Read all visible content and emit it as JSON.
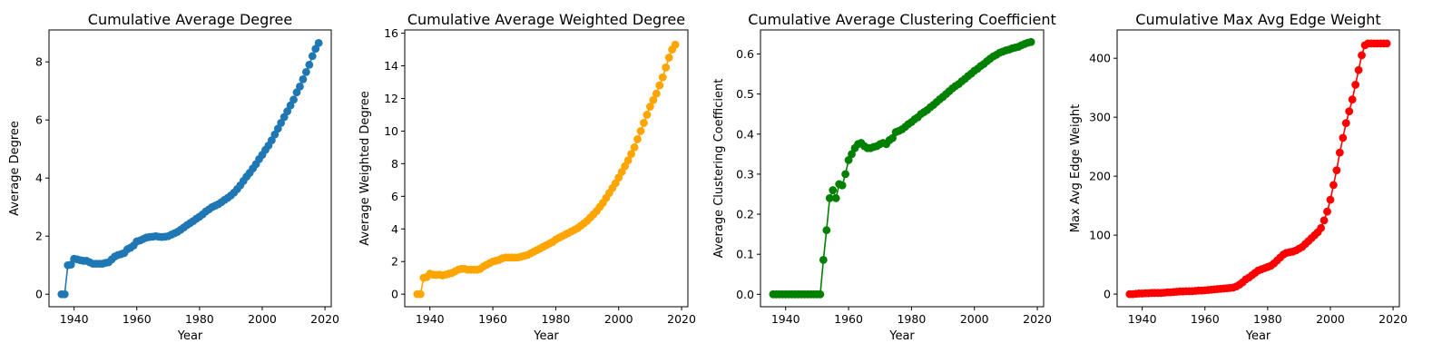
{
  "chart_data": [
    {
      "type": "line",
      "title": "Cumulative Average Degree",
      "xlabel": "Year",
      "ylabel": "Average Degree",
      "color": "#1f77b4",
      "xlim": [
        1932,
        2022
      ],
      "ylim": [
        -0.43,
        9.1
      ],
      "xticks": [
        1940,
        1960,
        1980,
        2000,
        2020
      ],
      "yticks": [
        0,
        2,
        4,
        6,
        8
      ],
      "ytick_labels": [
        "0",
        "2",
        "4",
        "6",
        "8"
      ],
      "grid": false,
      "markers": true,
      "x": [
        1936,
        1937,
        1938,
        1939,
        1940,
        1941,
        1942,
        1943,
        1944,
        1945,
        1946,
        1947,
        1948,
        1949,
        1950,
        1951,
        1952,
        1953,
        1954,
        1955,
        1956,
        1957,
        1958,
        1959,
        1960,
        1961,
        1962,
        1963,
        1964,
        1965,
        1966,
        1967,
        1968,
        1969,
        1970,
        1971,
        1972,
        1973,
        1974,
        1975,
        1976,
        1977,
        1978,
        1979,
        1980,
        1981,
        1982,
        1983,
        1984,
        1985,
        1986,
        1987,
        1988,
        1989,
        1990,
        1991,
        1992,
        1993,
        1994,
        1995,
        1996,
        1997,
        1998,
        1999,
        2000,
        2001,
        2002,
        2003,
        2004,
        2005,
        2006,
        2007,
        2008,
        2009,
        2010,
        2011,
        2012,
        2013,
        2014,
        2015,
        2016,
        2017,
        2018
      ],
      "y": [
        0,
        0,
        1.0,
        1.02,
        1.22,
        1.2,
        1.17,
        1.15,
        1.15,
        1.1,
        1.05,
        1.05,
        1.05,
        1.05,
        1.08,
        1.1,
        1.2,
        1.3,
        1.35,
        1.38,
        1.42,
        1.55,
        1.6,
        1.68,
        1.82,
        1.85,
        1.9,
        1.95,
        1.97,
        1.98,
        2.0,
        1.98,
        1.97,
        1.98,
        2.0,
        2.05,
        2.1,
        2.15,
        2.22,
        2.3,
        2.38,
        2.45,
        2.52,
        2.6,
        2.67,
        2.75,
        2.85,
        2.92,
        3.0,
        3.05,
        3.1,
        3.17,
        3.25,
        3.32,
        3.4,
        3.5,
        3.62,
        3.75,
        3.9,
        4.05,
        4.18,
        4.33,
        4.48,
        4.65,
        4.8,
        4.97,
        5.12,
        5.3,
        5.5,
        5.7,
        5.9,
        6.1,
        6.3,
        6.5,
        6.7,
        6.95,
        7.15,
        7.4,
        7.65,
        7.9,
        8.2,
        8.45,
        8.65
      ]
    },
    {
      "type": "line",
      "title": "Cumulative Average Weighted Degree",
      "xlabel": "Year",
      "ylabel": "Average Weighted Degree",
      "color": "#ffa500",
      "xlim": [
        1932,
        2022
      ],
      "ylim": [
        -0.77,
        16.2
      ],
      "xticks": [
        1940,
        1960,
        1980,
        2000,
        2020
      ],
      "yticks": [
        0,
        2,
        4,
        6,
        8,
        10,
        12,
        14,
        16
      ],
      "ytick_labels": [
        "0",
        "2",
        "4",
        "6",
        "8",
        "10",
        "12",
        "14",
        "16"
      ],
      "grid": false,
      "markers": true,
      "x": [
        1936,
        1937,
        1938,
        1939,
        1940,
        1941,
        1942,
        1943,
        1944,
        1945,
        1946,
        1947,
        1948,
        1949,
        1950,
        1951,
        1952,
        1953,
        1954,
        1955,
        1956,
        1957,
        1958,
        1959,
        1960,
        1961,
        1962,
        1963,
        1964,
        1965,
        1966,
        1967,
        1968,
        1969,
        1970,
        1971,
        1972,
        1973,
        1974,
        1975,
        1976,
        1977,
        1978,
        1979,
        1980,
        1981,
        1982,
        1983,
        1984,
        1985,
        1986,
        1987,
        1988,
        1989,
        1990,
        1991,
        1992,
        1993,
        1994,
        1995,
        1996,
        1997,
        1998,
        1999,
        2000,
        2001,
        2002,
        2003,
        2004,
        2005,
        2006,
        2007,
        2008,
        2009,
        2010,
        2011,
        2012,
        2013,
        2014,
        2015,
        2016,
        2017,
        2018
      ],
      "y": [
        0,
        0,
        1.0,
        1.05,
        1.25,
        1.2,
        1.18,
        1.2,
        1.15,
        1.2,
        1.25,
        1.3,
        1.4,
        1.5,
        1.55,
        1.55,
        1.5,
        1.5,
        1.5,
        1.5,
        1.55,
        1.7,
        1.8,
        1.9,
        2.0,
        2.05,
        2.1,
        2.2,
        2.25,
        2.25,
        2.25,
        2.25,
        2.25,
        2.3,
        2.35,
        2.4,
        2.5,
        2.6,
        2.7,
        2.8,
        2.9,
        3.0,
        3.1,
        3.2,
        3.35,
        3.45,
        3.55,
        3.65,
        3.75,
        3.85,
        3.95,
        4.05,
        4.2,
        4.35,
        4.5,
        4.7,
        4.9,
        5.1,
        5.35,
        5.6,
        5.9,
        6.2,
        6.5,
        6.8,
        7.15,
        7.5,
        7.85,
        8.2,
        8.6,
        9.0,
        9.5,
        10.0,
        10.5,
        11.0,
        11.5,
        11.9,
        12.3,
        12.8,
        13.3,
        13.9,
        14.5,
        15.0,
        15.3
      ]
    },
    {
      "type": "line",
      "title": "Cumulative Average Clustering Coefficient",
      "xlabel": "Year",
      "ylabel": "Average Clustering Coefficient",
      "color": "#008000",
      "xlim": [
        1932,
        2022
      ],
      "ylim": [
        -0.031,
        0.66
      ],
      "xticks": [
        1940,
        1960,
        1980,
        2000,
        2020
      ],
      "yticks": [
        0,
        0.1,
        0.2,
        0.3,
        0.4,
        0.5,
        0.6
      ],
      "ytick_labels": [
        "0.0",
        "0.1",
        "0.2",
        "0.3",
        "0.4",
        "0.5",
        "0.6"
      ],
      "grid": false,
      "markers": true,
      "x": [
        1936,
        1937,
        1938,
        1939,
        1940,
        1941,
        1942,
        1943,
        1944,
        1945,
        1946,
        1947,
        1948,
        1949,
        1950,
        1951,
        1952,
        1953,
        1954,
        1955,
        1956,
        1957,
        1958,
        1959,
        1960,
        1961,
        1962,
        1963,
        1964,
        1965,
        1966,
        1967,
        1968,
        1969,
        1970,
        1971,
        1972,
        1973,
        1974,
        1975,
        1976,
        1977,
        1978,
        1979,
        1980,
        1981,
        1982,
        1983,
        1984,
        1985,
        1986,
        1987,
        1988,
        1989,
        1990,
        1991,
        1992,
        1993,
        1994,
        1995,
        1996,
        1997,
        1998,
        1999,
        2000,
        2001,
        2002,
        2003,
        2004,
        2005,
        2006,
        2007,
        2008,
        2009,
        2010,
        2011,
        2012,
        2013,
        2014,
        2015,
        2016,
        2017,
        2018
      ],
      "y": [
        0,
        0,
        0,
        0,
        0,
        0,
        0,
        0,
        0,
        0,
        0,
        0,
        0,
        0,
        0,
        0,
        0.086,
        0.16,
        0.24,
        0.26,
        0.24,
        0.275,
        0.272,
        0.3,
        0.335,
        0.35,
        0.365,
        0.375,
        0.378,
        0.37,
        0.365,
        0.365,
        0.368,
        0.37,
        0.375,
        0.378,
        0.375,
        0.385,
        0.39,
        0.405,
        0.408,
        0.412,
        0.418,
        0.425,
        0.43,
        0.437,
        0.442,
        0.45,
        0.455,
        0.46,
        0.467,
        0.473,
        0.48,
        0.487,
        0.493,
        0.5,
        0.507,
        0.514,
        0.52,
        0.525,
        0.532,
        0.538,
        0.545,
        0.551,
        0.558,
        0.563,
        0.57,
        0.575,
        0.582,
        0.588,
        0.594,
        0.598,
        0.603,
        0.606,
        0.609,
        0.611,
        0.614,
        0.616,
        0.618,
        0.622,
        0.625,
        0.628,
        0.63
      ]
    },
    {
      "type": "line",
      "title": "Cumulative Max Avg Edge Weight",
      "xlabel": "Year",
      "ylabel": "Max Avg Edge Weight",
      "color": "#ff0000",
      "xlim": [
        1932,
        2022
      ],
      "ylim": [
        -21.4,
        448
      ],
      "xticks": [
        1940,
        1960,
        1980,
        2000,
        2020
      ],
      "yticks": [
        0,
        100,
        200,
        300,
        400
      ],
      "ytick_labels": [
        "0",
        "100",
        "200",
        "300",
        "400"
      ],
      "grid": false,
      "markers": true,
      "x": [
        1936,
        1937,
        1938,
        1939,
        1940,
        1941,
        1942,
        1943,
        1944,
        1945,
        1946,
        1947,
        1948,
        1949,
        1950,
        1951,
        1952,
        1953,
        1954,
        1955,
        1956,
        1957,
        1958,
        1959,
        1960,
        1961,
        1962,
        1963,
        1964,
        1965,
        1966,
        1967,
        1968,
        1969,
        1970,
        1971,
        1972,
        1973,
        1974,
        1975,
        1976,
        1977,
        1978,
        1979,
        1980,
        1981,
        1982,
        1983,
        1984,
        1985,
        1986,
        1987,
        1988,
        1989,
        1990,
        1991,
        1992,
        1993,
        1994,
        1995,
        1996,
        1997,
        1998,
        1999,
        2000,
        2001,
        2002,
        2003,
        2004,
        2005,
        2006,
        2007,
        2008,
        2009,
        2010,
        2011,
        2012,
        2013,
        2014,
        2015,
        2016,
        2017,
        2018
      ],
      "y": [
        0,
        0,
        0.5,
        1,
        1,
        1.5,
        1.5,
        2,
        2,
        2,
        2,
        2.5,
        3,
        3,
        3.5,
        4,
        4.5,
        4.5,
        5,
        5,
        5,
        5.5,
        6,
        6,
        6.5,
        7,
        7.5,
        8,
        8.5,
        9,
        9.5,
        10,
        10.5,
        11,
        13,
        16,
        20,
        25,
        28,
        32,
        36,
        40,
        42,
        44,
        46,
        48,
        52,
        57,
        62,
        67,
        70,
        71,
        72,
        74,
        77,
        80,
        85,
        90,
        95,
        100,
        105,
        112,
        125,
        140,
        160,
        185,
        210,
        240,
        265,
        290,
        310,
        330,
        355,
        380,
        405,
        422,
        425,
        425,
        425,
        425,
        425,
        425,
        425
      ]
    }
  ]
}
